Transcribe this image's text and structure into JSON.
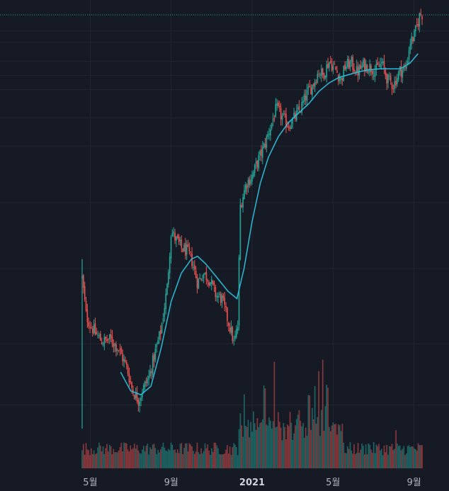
{
  "chart_data": {
    "type": "candlestick",
    "colors": {
      "background": "#161a25",
      "grid": "#232733",
      "up": "#26a69a",
      "down": "#ef5350",
      "moving_average": "#2bbcd8",
      "last_price_line": "#26a69a",
      "axis_text": "#b2b5be"
    },
    "x_axis": {
      "ticks": [
        {
          "label": "5월",
          "month_index": 1,
          "bold": false
        },
        {
          "label": "9월",
          "month_index": 5,
          "bold": false
        },
        {
          "label": "2021",
          "month_index": 9,
          "bold": true
        },
        {
          "label": "5월",
          "month_index": 13,
          "bold": false
        },
        {
          "label": "9월",
          "month_index": 17,
          "bold": false
        }
      ],
      "range": [
        0.6,
        17.4
      ]
    },
    "price_axis": {
      "range": [
        30,
        470
      ],
      "grid_levels": [
        55,
        120,
        200,
        270,
        330,
        360,
        390,
        405,
        420,
        440,
        452
      ]
    },
    "price_series": [
      {
        "t": 0.6,
        "p": 190
      },
      {
        "t": 0.8,
        "p": 150
      },
      {
        "t": 1.0,
        "p": 140
      },
      {
        "t": 1.3,
        "p": 130
      },
      {
        "t": 1.6,
        "p": 122
      },
      {
        "t": 2.0,
        "p": 125
      },
      {
        "t": 2.4,
        "p": 115
      },
      {
        "t": 2.8,
        "p": 95
      },
      {
        "t": 3.1,
        "p": 70
      },
      {
        "t": 3.4,
        "p": 60
      },
      {
        "t": 3.6,
        "p": 72
      },
      {
        "t": 3.9,
        "p": 85
      },
      {
        "t": 4.2,
        "p": 110
      },
      {
        "t": 4.5,
        "p": 135
      },
      {
        "t": 4.8,
        "p": 180
      },
      {
        "t": 5.0,
        "p": 240
      },
      {
        "t": 5.2,
        "p": 232
      },
      {
        "t": 5.5,
        "p": 222
      },
      {
        "t": 5.8,
        "p": 218
      },
      {
        "t": 6.0,
        "p": 210
      },
      {
        "t": 6.3,
        "p": 185
      },
      {
        "t": 6.6,
        "p": 195
      },
      {
        "t": 6.9,
        "p": 188
      },
      {
        "t": 7.2,
        "p": 172
      },
      {
        "t": 7.5,
        "p": 168
      },
      {
        "t": 7.8,
        "p": 145
      },
      {
        "t": 8.0,
        "p": 130
      },
      {
        "t": 8.1,
        "p": 120
      },
      {
        "t": 8.2,
        "p": 130
      },
      {
        "t": 8.3,
        "p": 140
      },
      {
        "t": 8.4,
        "p": 265
      },
      {
        "t": 8.7,
        "p": 290
      },
      {
        "t": 9.0,
        "p": 298
      },
      {
        "t": 9.3,
        "p": 315
      },
      {
        "t": 9.6,
        "p": 330
      },
      {
        "t": 9.9,
        "p": 350
      },
      {
        "t": 10.2,
        "p": 370
      },
      {
        "t": 10.5,
        "p": 360
      },
      {
        "t": 10.8,
        "p": 352
      },
      {
        "t": 11.1,
        "p": 360
      },
      {
        "t": 11.4,
        "p": 370
      },
      {
        "t": 11.7,
        "p": 385
      },
      {
        "t": 12.0,
        "p": 395
      },
      {
        "t": 12.3,
        "p": 410
      },
      {
        "t": 12.5,
        "p": 405
      },
      {
        "t": 12.8,
        "p": 420
      },
      {
        "t": 13.1,
        "p": 412
      },
      {
        "t": 13.4,
        "p": 400
      },
      {
        "t": 13.6,
        "p": 415
      },
      {
        "t": 13.9,
        "p": 418
      },
      {
        "t": 14.2,
        "p": 408
      },
      {
        "t": 14.5,
        "p": 416
      },
      {
        "t": 14.8,
        "p": 414
      },
      {
        "t": 15.1,
        "p": 410
      },
      {
        "t": 15.4,
        "p": 418
      },
      {
        "t": 15.7,
        "p": 400
      },
      {
        "t": 16.0,
        "p": 395
      },
      {
        "t": 16.3,
        "p": 410
      },
      {
        "t": 16.6,
        "p": 412
      },
      {
        "t": 16.8,
        "p": 440
      },
      {
        "t": 17.0,
        "p": 446
      },
      {
        "t": 17.3,
        "p": 470
      }
    ],
    "moving_average": [
      {
        "t": 2.5,
        "p": 90
      },
      {
        "t": 3.0,
        "p": 70
      },
      {
        "t": 3.5,
        "p": 66
      },
      {
        "t": 4.0,
        "p": 75
      },
      {
        "t": 4.5,
        "p": 115
      },
      {
        "t": 5.0,
        "p": 165
      },
      {
        "t": 5.5,
        "p": 195
      },
      {
        "t": 6.0,
        "p": 210
      },
      {
        "t": 6.3,
        "p": 213
      },
      {
        "t": 6.7,
        "p": 205
      },
      {
        "t": 7.2,
        "p": 192
      },
      {
        "t": 7.8,
        "p": 176
      },
      {
        "t": 8.25,
        "p": 168
      },
      {
        "t": 8.6,
        "p": 200
      },
      {
        "t": 9.0,
        "p": 250
      },
      {
        "t": 9.4,
        "p": 290
      },
      {
        "t": 9.8,
        "p": 318
      },
      {
        "t": 10.3,
        "p": 340
      },
      {
        "t": 10.8,
        "p": 355
      },
      {
        "t": 11.3,
        "p": 365
      },
      {
        "t": 11.8,
        "p": 375
      },
      {
        "t": 12.3,
        "p": 388
      },
      {
        "t": 12.8,
        "p": 397
      },
      {
        "t": 13.3,
        "p": 403
      },
      {
        "t": 13.8,
        "p": 406
      },
      {
        "t": 14.3,
        "p": 409
      },
      {
        "t": 14.8,
        "p": 411
      },
      {
        "t": 15.3,
        "p": 412
      },
      {
        "t": 15.8,
        "p": 412
      },
      {
        "t": 16.3,
        "p": 412
      },
      {
        "t": 16.8,
        "p": 418
      },
      {
        "t": 17.2,
        "p": 428
      }
    ],
    "volume": {
      "baseline_range": [
        0,
        100
      ],
      "spikes": [
        {
          "t": 8.6,
          "v": 55
        },
        {
          "t": 9.6,
          "v": 60
        },
        {
          "t": 10.1,
          "v": 80
        },
        {
          "t": 11.3,
          "v": 40
        },
        {
          "t": 11.8,
          "v": 55
        },
        {
          "t": 12.1,
          "v": 62
        },
        {
          "t": 12.3,
          "v": 72
        },
        {
          "t": 12.5,
          "v": 78
        },
        {
          "t": 12.7,
          "v": 60
        },
        {
          "t": 14.8,
          "v": 16
        },
        {
          "t": 16.1,
          "v": 25
        }
      ]
    },
    "last_price": 470
  }
}
